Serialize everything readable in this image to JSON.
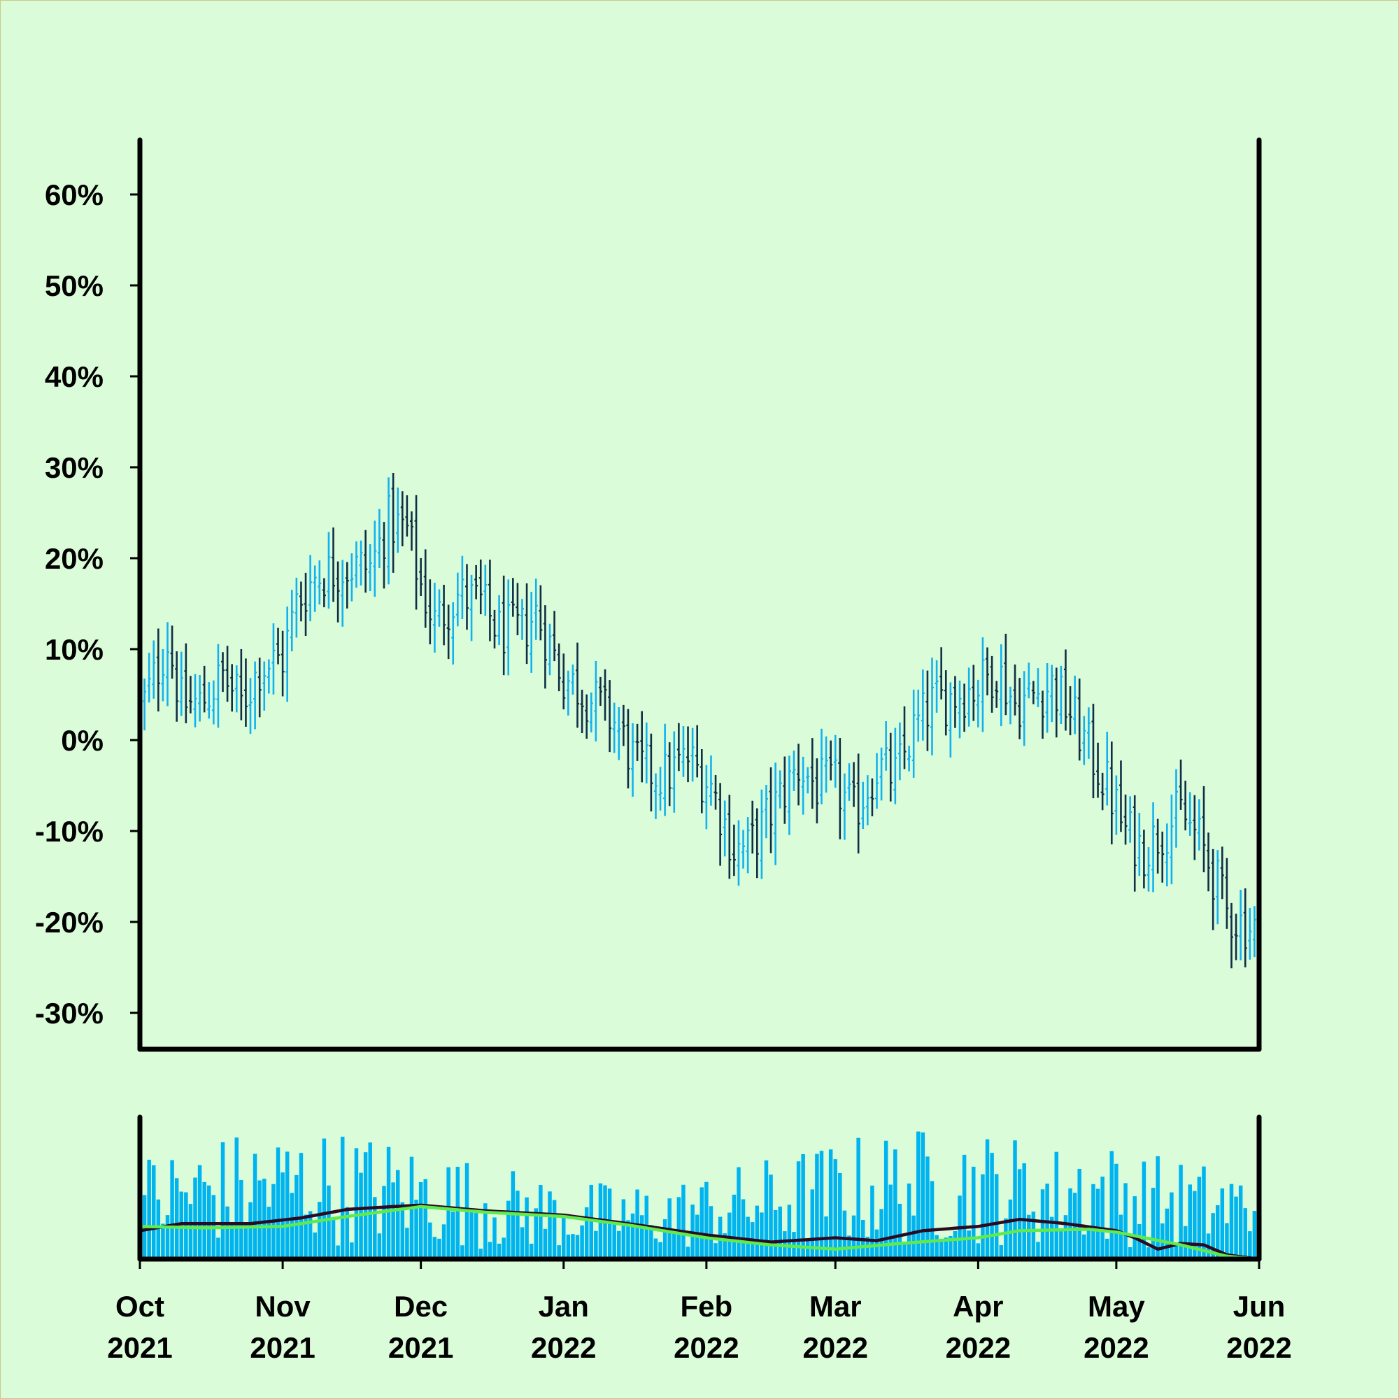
{
  "chart_data": [
    {
      "type": "ohlc",
      "title": "",
      "xlabel": "",
      "ylabel": "",
      "y_unit": "%",
      "ylim": [
        -34,
        66
      ],
      "xlim": [
        "2021-10-01",
        "2022-06-01"
      ],
      "grid": false,
      "colors": {
        "up": "#12b2ef",
        "down": "#0e2f45"
      },
      "y_ticks": [
        {
          "value": 60,
          "label": "60%"
        },
        {
          "value": 50,
          "label": "50%"
        },
        {
          "value": 40,
          "label": "40%"
        },
        {
          "value": 30,
          "label": "30%"
        },
        {
          "value": 20,
          "label": "20%"
        },
        {
          "value": 10,
          "label": "10%"
        },
        {
          "value": 0,
          "label": "0%"
        },
        {
          "value": -10,
          "label": "-10%"
        },
        {
          "value": -20,
          "label": "-20%"
        },
        {
          "value": -30,
          "label": "-30%"
        }
      ],
      "close_path": [
        [
          "2021-10-01",
          3
        ],
        [
          "2021-10-05",
          8
        ],
        [
          "2021-10-07",
          11
        ],
        [
          "2021-10-10",
          4
        ],
        [
          "2021-10-14",
          4
        ],
        [
          "2021-10-19",
          7
        ],
        [
          "2021-10-23",
          4
        ],
        [
          "2021-10-27",
          8
        ],
        [
          "2021-11-01",
          9
        ],
        [
          "2021-11-04",
          15
        ],
        [
          "2021-11-08",
          18
        ],
        [
          "2021-11-14",
          19
        ],
        [
          "2021-11-20",
          19
        ],
        [
          "2021-11-24",
          24
        ],
        [
          "2021-11-28",
          23
        ],
        [
          "2021-12-01",
          17
        ],
        [
          "2021-12-04",
          13
        ],
        [
          "2021-12-09",
          16
        ],
        [
          "2021-12-14",
          15
        ],
        [
          "2021-12-18",
          12
        ],
        [
          "2021-12-23",
          12
        ],
        [
          "2021-12-26",
          14
        ],
        [
          "2022-01-01",
          7
        ],
        [
          "2022-01-06",
          5
        ],
        [
          "2022-01-12",
          2
        ],
        [
          "2022-01-17",
          -3
        ],
        [
          "2022-01-23",
          -4
        ],
        [
          "2022-01-28",
          -2
        ],
        [
          "2022-02-02",
          -5
        ],
        [
          "2022-02-07",
          -12
        ],
        [
          "2022-02-10",
          -12
        ],
        [
          "2022-02-15",
          -8
        ],
        [
          "2022-02-21",
          -3
        ],
        [
          "2022-02-25",
          -5
        ],
        [
          "2022-03-01",
          -5
        ],
        [
          "2022-03-05",
          -8
        ],
        [
          "2022-03-10",
          -3
        ],
        [
          "2022-03-14",
          -4
        ],
        [
          "2022-03-18",
          1
        ],
        [
          "2022-03-22",
          4
        ],
        [
          "2022-03-27",
          5
        ],
        [
          "2022-04-01",
          6
        ],
        [
          "2022-04-05",
          8
        ],
        [
          "2022-04-09",
          4
        ],
        [
          "2022-04-13",
          5
        ],
        [
          "2022-04-17",
          6
        ],
        [
          "2022-04-21",
          3
        ],
        [
          "2022-04-25",
          -1
        ],
        [
          "2022-04-29",
          -5
        ],
        [
          "2022-05-03",
          -10
        ],
        [
          "2022-05-07",
          -12
        ],
        [
          "2022-05-11",
          -10
        ],
        [
          "2022-05-15",
          -8
        ],
        [
          "2022-05-19",
          -11
        ],
        [
          "2022-05-23",
          -16
        ],
        [
          "2022-05-25",
          -19
        ],
        [
          "2022-05-28",
          -20
        ],
        [
          "2022-06-01",
          -21
        ]
      ]
    },
    {
      "type": "bar+line",
      "title": "",
      "xlabel": "",
      "ylabel": "",
      "ylim": [
        0,
        100
      ],
      "colors": {
        "bars": "#00b4ef",
        "line_fast": "#2b0a22",
        "line_slow": "#5fea4e"
      },
      "x_ticks": [
        {
          "date": "2021-10-01",
          "month": "Oct",
          "year": "2021"
        },
        {
          "date": "2021-11-01",
          "month": "Nov",
          "year": "2021"
        },
        {
          "date": "2021-12-01",
          "month": "Dec",
          "year": "2021"
        },
        {
          "date": "2022-01-01",
          "month": "Jan",
          "year": "2022"
        },
        {
          "date": "2022-02-01",
          "month": "Feb",
          "year": "2022"
        },
        {
          "date": "2022-03-01",
          "month": "Mar",
          "year": "2022"
        },
        {
          "date": "2022-04-01",
          "month": "Apr",
          "year": "2022"
        },
        {
          "date": "2022-05-01",
          "month": "May",
          "year": "2022"
        },
        {
          "date": "2022-06-01",
          "month": "Jun",
          "year": "2022"
        }
      ],
      "line_fast": [
        [
          "2021-10-01",
          20
        ],
        [
          "2021-10-10",
          25
        ],
        [
          "2021-10-25",
          25
        ],
        [
          "2021-11-05",
          29
        ],
        [
          "2021-11-15",
          35
        ],
        [
          "2021-11-25",
          37
        ],
        [
          "2021-12-01",
          38
        ],
        [
          "2021-12-15",
          34
        ],
        [
          "2022-01-01",
          31
        ],
        [
          "2022-01-15",
          25
        ],
        [
          "2022-02-01",
          17
        ],
        [
          "2022-02-15",
          12
        ],
        [
          "2022-03-01",
          15
        ],
        [
          "2022-03-10",
          13
        ],
        [
          "2022-03-20",
          20
        ],
        [
          "2022-04-01",
          23
        ],
        [
          "2022-04-10",
          28
        ],
        [
          "2022-04-20",
          25
        ],
        [
          "2022-05-01",
          20
        ],
        [
          "2022-05-05",
          15
        ],
        [
          "2022-05-10",
          7
        ],
        [
          "2022-05-15",
          11
        ],
        [
          "2022-05-20",
          10
        ],
        [
          "2022-05-25",
          3
        ],
        [
          "2022-06-01",
          0
        ]
      ],
      "line_slow": [
        [
          "2021-10-01",
          23
        ],
        [
          "2021-10-15",
          22
        ],
        [
          "2021-11-01",
          23
        ],
        [
          "2021-11-15",
          30
        ],
        [
          "2021-12-01",
          37
        ],
        [
          "2021-12-15",
          33
        ],
        [
          "2022-01-01",
          30
        ],
        [
          "2022-01-15",
          24
        ],
        [
          "2022-02-01",
          15
        ],
        [
          "2022-02-15",
          10
        ],
        [
          "2022-03-01",
          7
        ],
        [
          "2022-03-15",
          11
        ],
        [
          "2022-04-01",
          15
        ],
        [
          "2022-04-10",
          20
        ],
        [
          "2022-04-25",
          21
        ],
        [
          "2022-05-01",
          19
        ],
        [
          "2022-05-15",
          10
        ],
        [
          "2022-05-25",
          2
        ],
        [
          "2022-06-01",
          0
        ]
      ]
    }
  ]
}
